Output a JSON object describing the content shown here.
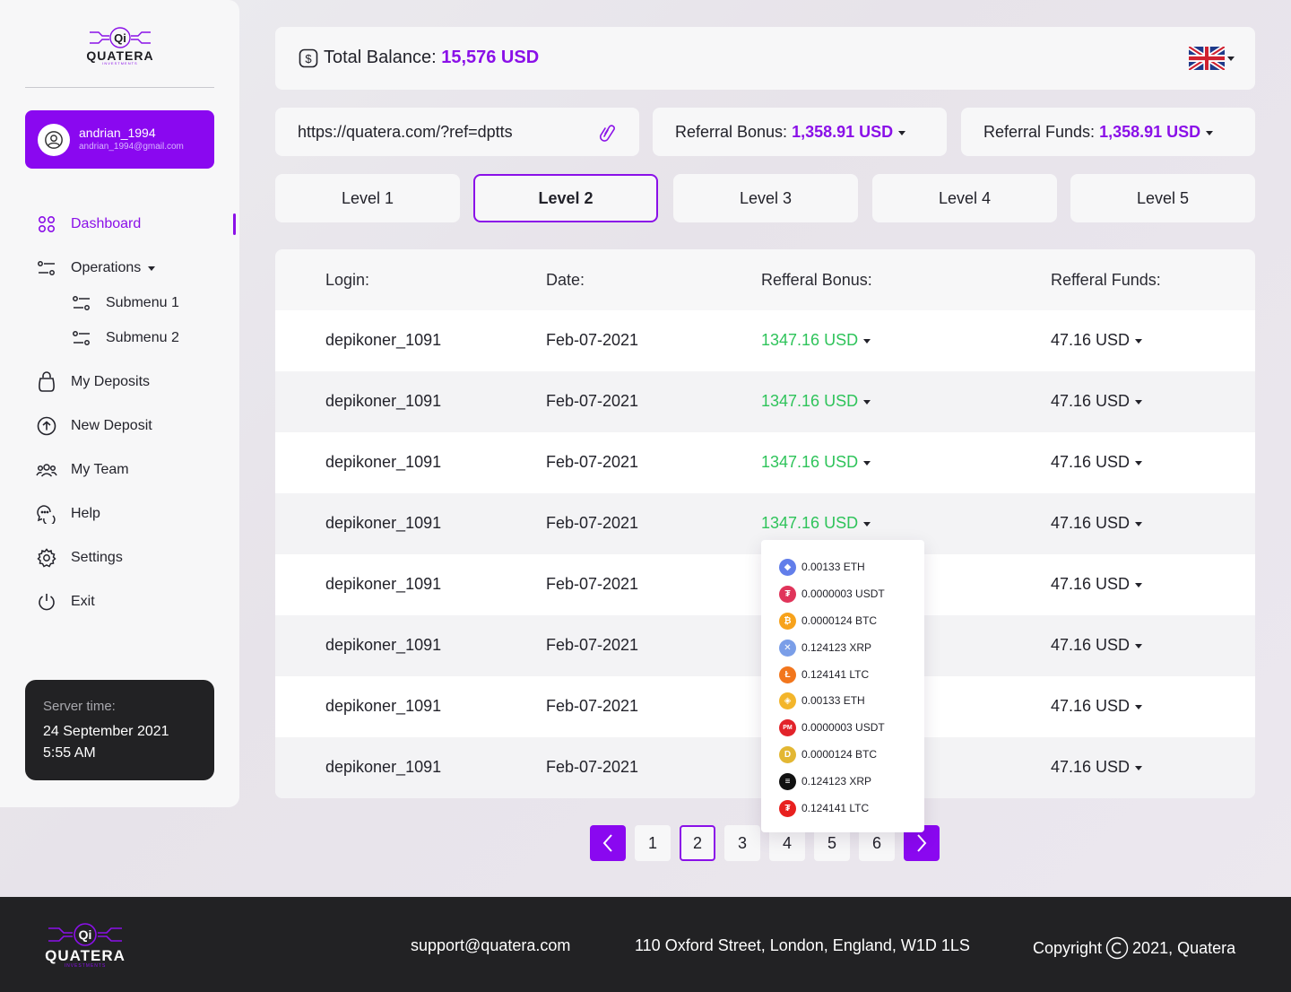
{
  "brand": {
    "name": "QUATERA",
    "subtitle": "INVESTMENTS",
    "mark": "Qi"
  },
  "user": {
    "name": "andrian_1994",
    "email": "andrian_1994@gmail.com"
  },
  "nav": {
    "dashboard": "Dashboard",
    "operations": "Operations",
    "submenu1": "Submenu 1",
    "submenu2": "Submenu 2",
    "deposits": "My Deposits",
    "new_deposit": "New Deposit",
    "team": "My Team",
    "help": "Help",
    "settings": "Settings",
    "exit": "Exit"
  },
  "server": {
    "label": "Server time:",
    "date": "24 September 2021",
    "time": "5:55 AM"
  },
  "balance": {
    "label": "Total Balance:",
    "value": "15,576 USD"
  },
  "referral": {
    "link": "https://quatera.com/?ref=dptts",
    "bonus_label": "Referral Bonus:",
    "bonus_value": "1,358.91 USD",
    "funds_label": "Referral Funds:",
    "funds_value": "1,358.91 USD"
  },
  "levels": [
    "Level 1",
    "Level 2",
    "Level 3",
    "Level 4",
    "Level 5"
  ],
  "active_level": "Level 2",
  "table": {
    "headers": [
      "Login:",
      "Date:",
      "Refferal Bonus:",
      "Refferal Funds:"
    ],
    "rows": [
      {
        "login": "depikoner_1091",
        "date": "Feb-07-2021",
        "bonus": "1347.16 USD",
        "funds": "47.16 USD"
      },
      {
        "login": "depikoner_1091",
        "date": "Feb-07-2021",
        "bonus": "1347.16 USD",
        "funds": "47.16 USD"
      },
      {
        "login": "depikoner_1091",
        "date": "Feb-07-2021",
        "bonus": "1347.16 USD",
        "funds": "47.16 USD"
      },
      {
        "login": "depikoner_1091",
        "date": "Feb-07-2021",
        "bonus": "1347.16 USD",
        "funds": "47.16 USD"
      },
      {
        "login": "depikoner_1091",
        "date": "Feb-07-2021",
        "bonus": "",
        "funds": "47.16 USD"
      },
      {
        "login": "depikoner_1091",
        "date": "Feb-07-2021",
        "bonus": "",
        "funds": "47.16 USD"
      },
      {
        "login": "depikoner_1091",
        "date": "Feb-07-2021",
        "bonus": "",
        "funds": "47.16 USD"
      },
      {
        "login": "depikoner_1091",
        "date": "Feb-07-2021",
        "bonus": "",
        "funds": "47.16 USD"
      }
    ]
  },
  "dropdown": [
    {
      "text": "0.00133 ETH",
      "icon": "ethereum-icon",
      "color": "#627eea",
      "glyph": "◆"
    },
    {
      "text": "0.0000003 USDT",
      "icon": "tether-icon",
      "color": "#e0345a",
      "glyph": "₮"
    },
    {
      "text": "0.0000124 BTC",
      "icon": "bitcoin-icon",
      "color": "#f7a21b",
      "glyph": "₿"
    },
    {
      "text": "0.124123 XRP",
      "icon": "xrp-icon",
      "color": "#7a9ee8",
      "glyph": "✕"
    },
    {
      "text": "0.124141 LTC",
      "icon": "litecoin-icon",
      "color": "#f2761d",
      "glyph": "Ł"
    },
    {
      "text": "0.00133 ETH",
      "icon": "binance-icon",
      "color": "#f3b52a",
      "glyph": "◈"
    },
    {
      "text": "0.0000003 USDT",
      "icon": "perfect-money-icon",
      "color": "#e2232a",
      "glyph": "PM"
    },
    {
      "text": "0.0000124 BTC",
      "icon": "dogecoin-icon",
      "color": "#e3b733",
      "glyph": "D"
    },
    {
      "text": "0.124123 XRP",
      "icon": "dash-icon",
      "color": "#111111",
      "glyph": "≡"
    },
    {
      "text": "0.124141 LTC",
      "icon": "tron-icon",
      "color": "#e8201f",
      "glyph": "₮"
    }
  ],
  "pagination": {
    "pages": [
      "1",
      "2",
      "3",
      "4",
      "5",
      "6"
    ],
    "current": "2"
  },
  "footer": {
    "email": "support@quatera.com",
    "address": "110 Oxford Street, London, England, W1D 1LS",
    "copyright_prefix": "Copyright",
    "copyright_rest": "2021, Quatera"
  },
  "colors": {
    "accent": "#8a10e8",
    "positive": "#2ec35a",
    "dark": "#222224"
  }
}
